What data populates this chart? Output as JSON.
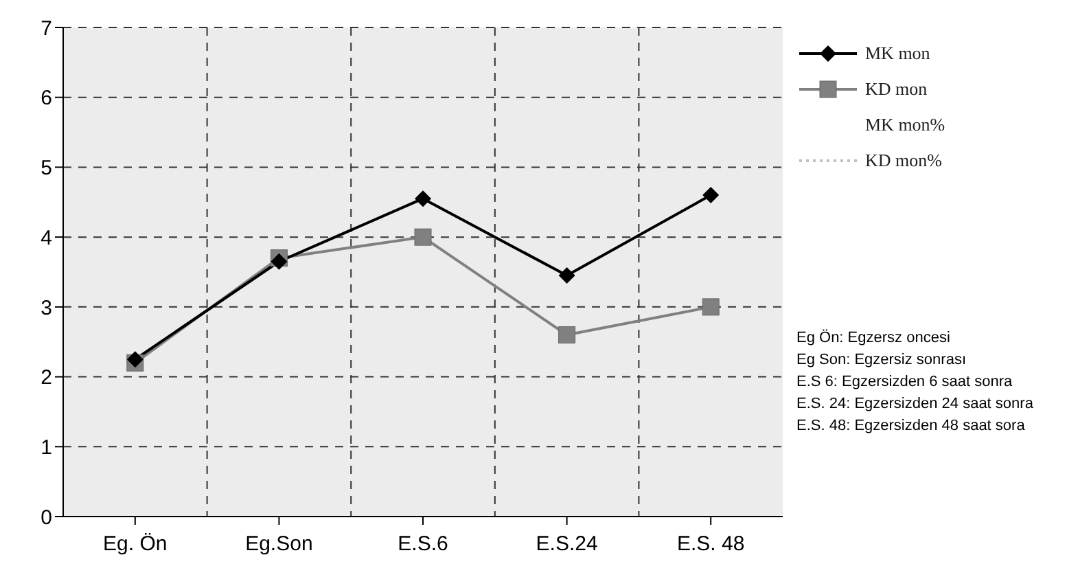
{
  "chart_data": {
    "type": "line",
    "categories": [
      "Eg. Ön",
      "Eg.Son",
      "E.S.6",
      "E.S.24",
      "E.S. 48"
    ],
    "series": [
      {
        "name": "MK mon",
        "color": "#000000",
        "marker": "diamond",
        "values": [
          2.25,
          3.65,
          4.55,
          3.45,
          4.6
        ]
      },
      {
        "name": "KD mon",
        "color": "#808080",
        "marker": "square",
        "values": [
          2.2,
          3.7,
          4.0,
          2.6,
          3.0
        ]
      },
      {
        "name": "MK mon%",
        "marker": "none",
        "values": [
          null,
          null,
          null,
          null,
          null
        ]
      },
      {
        "name": "KD mon%",
        "color": "#c0c0c0",
        "marker": "none",
        "values": [
          null,
          null,
          null,
          null,
          null
        ]
      }
    ],
    "ylim": [
      0,
      7
    ],
    "yticks": [
      0,
      1,
      2,
      3,
      4,
      5,
      6,
      7
    ],
    "grid": true,
    "legend": "right",
    "line_style": "solid",
    "annotations": [
      "Eg Ön: Egzersz oncesi",
      "Eg Son: Egzersiz sonrası",
      "E.S 6: Egzersizden 6 saat sonra",
      "E.S. 24: Egzersizden 24 saat sonra",
      "E.S. 48: Egzersizden 48 saat sora"
    ]
  }
}
